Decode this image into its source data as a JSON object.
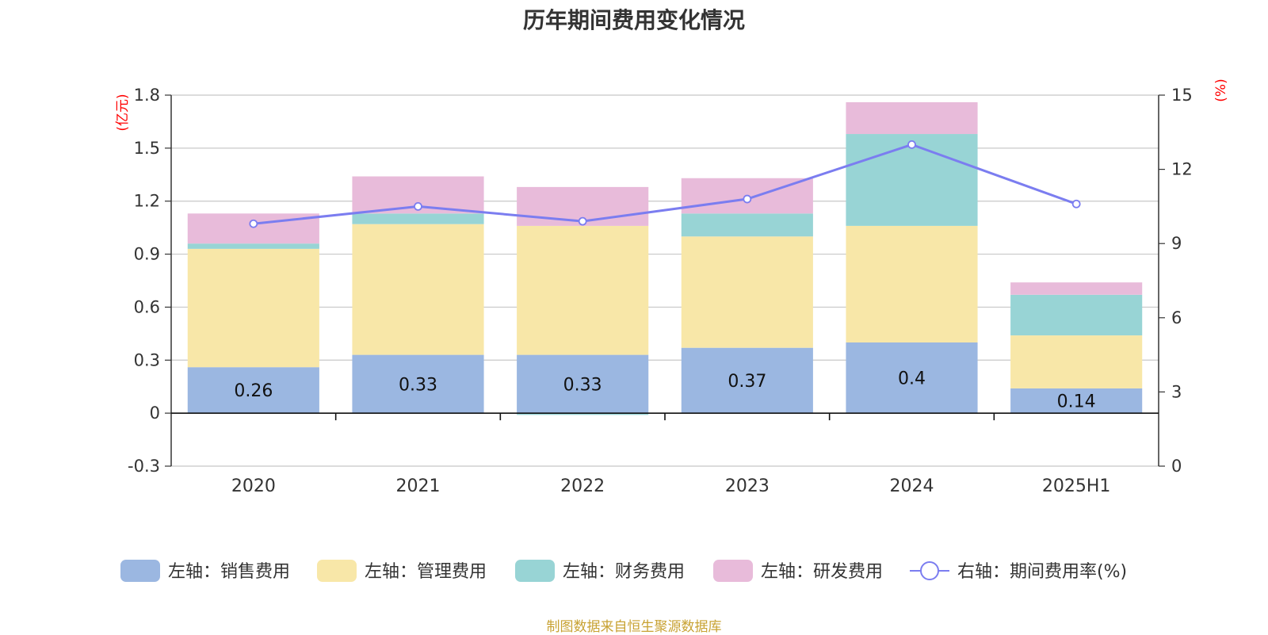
{
  "chart_data": {
    "type": "bar",
    "title": "历年期间费用变化情况",
    "categories": [
      "2020",
      "2021",
      "2022",
      "2023",
      "2024",
      "2025H1"
    ],
    "left_axis": {
      "unit": "(亿元)",
      "ylim": [
        -0.3,
        1.8
      ],
      "ticks": [
        "-0.3",
        "0",
        "0.3",
        "0.6",
        "0.9",
        "1.2",
        "1.5",
        "1.8"
      ]
    },
    "right_axis": {
      "unit": "(%)",
      "ylim": [
        0,
        15
      ],
      "ticks": [
        "0",
        "3",
        "6",
        "9",
        "12",
        "15"
      ]
    },
    "series": [
      {
        "name": "左轴：销售费用",
        "kind": "bar",
        "axis": "left",
        "color": "#9bb7e1",
        "values": [
          0.26,
          0.33,
          0.33,
          0.37,
          0.4,
          0.14
        ],
        "labels": [
          "0.26",
          "0.33",
          "0.33",
          "0.37",
          "0.4",
          "0.14"
        ]
      },
      {
        "name": "左轴：管理费用",
        "kind": "bar",
        "axis": "left",
        "color": "#f8e7a8",
        "values": [
          0.67,
          0.74,
          0.73,
          0.63,
          0.66,
          0.3
        ]
      },
      {
        "name": "左轴：财务费用",
        "kind": "bar",
        "axis": "left",
        "color": "#98d4d5",
        "values": [
          0.03,
          0.06,
          -0.01,
          0.13,
          0.52,
          0.23
        ]
      },
      {
        "name": "左轴：研发费用",
        "kind": "bar",
        "axis": "left",
        "color": "#e8bbda",
        "values": [
          0.17,
          0.21,
          0.22,
          0.2,
          0.18,
          0.07
        ]
      },
      {
        "name": "右轴：期间费用率(%)",
        "kind": "line",
        "axis": "right",
        "color": "#7b7df0",
        "values": [
          9.8,
          10.5,
          9.9,
          10.8,
          13.0,
          10.6
        ]
      }
    ],
    "grid": true,
    "legend_position": "bottom"
  },
  "source_note": "制图数据来自恒生聚源数据库"
}
